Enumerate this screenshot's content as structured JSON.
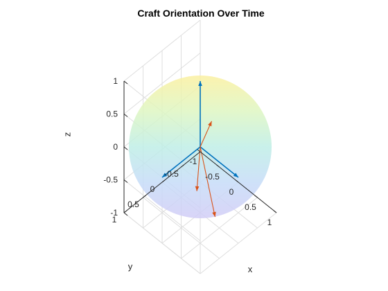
{
  "chart_data": {
    "type": "3d-vector",
    "title": "Craft Orientation Over Time",
    "xlabel": "x",
    "ylabel": "y",
    "zlabel": "z",
    "xlim": [
      -1,
      1
    ],
    "ylim": [
      -1,
      1
    ],
    "zlim": [
      -1,
      1
    ],
    "xticks": [
      "-1",
      "-0.5",
      "0",
      "0.5",
      "1"
    ],
    "yticks": [
      "-0.5",
      "0",
      "0.5",
      "1"
    ],
    "zticks": [
      "-1",
      "-0.5",
      "0",
      "0.5",
      "1"
    ],
    "grid": true,
    "surface": {
      "type": "unit-sphere",
      "colormap": "parula",
      "alpha": 0.2
    },
    "series": [
      {
        "color": "#0072BD",
        "vectors": [
          {
            "origin": [
              0,
              0,
              0
            ],
            "dir": [
              0,
              0,
              1
            ]
          },
          {
            "origin": [
              0,
              0,
              0
            ],
            "dir": [
              1,
              0,
              0
            ]
          },
          {
            "origin": [
              0,
              0,
              0
            ],
            "dir": [
              0,
              1,
              0
            ]
          }
        ]
      },
      {
        "color": "#D95319",
        "vectors": [
          {
            "origin": [
              0,
              0,
              0
            ],
            "dir": [
              0.57,
              0.27,
              0.78
            ]
          },
          {
            "origin": [
              0,
              0,
              0
            ],
            "dir": [
              0.75,
              0.36,
              -0.55
            ]
          },
          {
            "origin": [
              0,
              0,
              0
            ],
            "dir": [
              0.66,
              0.75,
              -0.02
            ]
          }
        ]
      }
    ]
  }
}
